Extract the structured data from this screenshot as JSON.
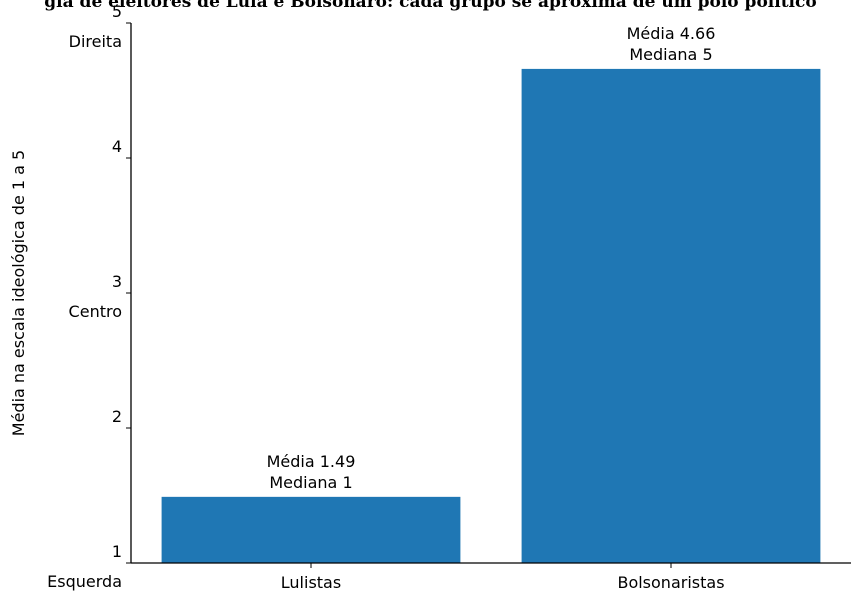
{
  "chart_data": {
    "type": "bar",
    "title": "gia de eleitores de Lula e Bolsonaro: cada grupo se aproxima de um polo político",
    "xlabel": "",
    "ylabel": "Média na escala ideológica de 1 a 5",
    "ylim": [
      1,
      5
    ],
    "yticks": [
      "1",
      "2",
      "3",
      "4",
      "5"
    ],
    "scale_labels": [
      {
        "value": 1,
        "text": "Esquerda"
      },
      {
        "value": 3,
        "text": "Centro"
      },
      {
        "value": 5,
        "text": "Direita"
      }
    ],
    "categories": [
      "Lulistas",
      "Bolsonaristas"
    ],
    "values": [
      1.49,
      4.66
    ],
    "bar_labels": [
      [
        "Média 1.49",
        "Mediana 1"
      ],
      [
        "Média 4.66",
        "Mediana 5"
      ]
    ],
    "colors": {
      "bar": "#1f77b4",
      "axis": "#000000"
    },
    "grid": false,
    "legend": "none"
  }
}
